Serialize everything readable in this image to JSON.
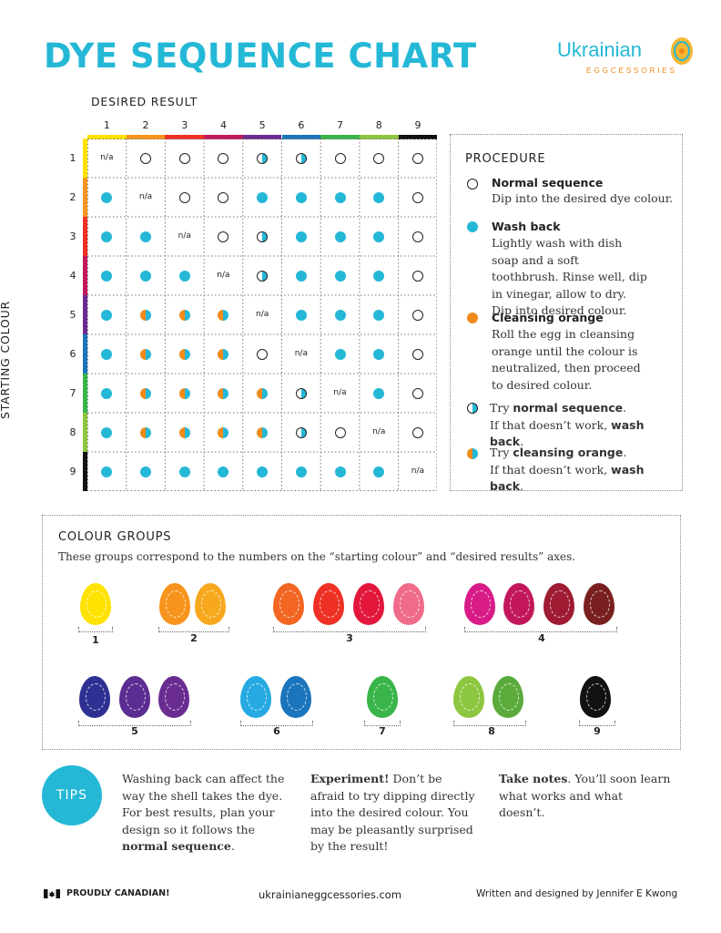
{
  "title": "DYE SEQUENCE CHART",
  "logo": {
    "word": "Ukrainian",
    "sub": "EGGCESSORIES"
  },
  "axes": {
    "top": "DESIRED RESULT",
    "left": "STARTING COLOUR"
  },
  "colors": {
    "accent": "#24b8d6",
    "orange": "#f08a1a",
    "group_bars": [
      "#ffe200",
      "#f7941d",
      "#ee3124",
      "#c2185b",
      "#6a2c91",
      "#1b75bc",
      "#39b54a",
      "#8dc63f",
      "#111111"
    ]
  },
  "column_numbers": [
    "1",
    "2",
    "3",
    "4",
    "5",
    "6",
    "7",
    "8",
    "9"
  ],
  "row_numbers": [
    "1",
    "2",
    "3",
    "4",
    "5",
    "6",
    "7",
    "8",
    "9"
  ],
  "legend_codes": {
    "n": "normal sequence",
    "w": "wash back",
    "h": "try normal, else wash back",
    "o": "try cleansing orange, else wash back",
    "x": "n/a"
  },
  "matrix": [
    [
      "x",
      "n",
      "n",
      "n",
      "h",
      "h",
      "n",
      "n",
      "n"
    ],
    [
      "w",
      "x",
      "n",
      "n",
      "w",
      "w",
      "w",
      "w",
      "n"
    ],
    [
      "w",
      "w",
      "x",
      "n",
      "h",
      "w",
      "w",
      "w",
      "n"
    ],
    [
      "w",
      "w",
      "w",
      "x",
      "h",
      "w",
      "w",
      "w",
      "n"
    ],
    [
      "w",
      "o",
      "o",
      "o",
      "x",
      "w",
      "w",
      "w",
      "n"
    ],
    [
      "w",
      "o",
      "o",
      "o",
      "n",
      "x",
      "w",
      "w",
      "n"
    ],
    [
      "w",
      "o",
      "o",
      "o",
      "o",
      "h",
      "x",
      "w",
      "n"
    ],
    [
      "w",
      "o",
      "o",
      "o",
      "o",
      "h",
      "n",
      "x",
      "n"
    ],
    [
      "w",
      "w",
      "w",
      "w",
      "w",
      "w",
      "w",
      "w",
      "x"
    ]
  ],
  "na_label": "n/a",
  "procedure": {
    "title": "PROCEDURE",
    "normal_heading": "Normal sequence",
    "normal_text": "Dip into the desired dye colour.",
    "wash_heading": "Wash back",
    "wash_text": "Lightly wash with dish soap and a soft toothbrush. Rinse well, dip in vinegar, allow to dry. Dip into desired colour.",
    "orange_heading": "Cleansing orange",
    "orange_text": "Roll the egg in cleansing orange until the colour is neutralized, then proceed to desired colour.",
    "try1_a": "Try ",
    "try1_b": "normal sequence",
    "try1_c": ".",
    "try1_d": "If that doesn’t work, ",
    "try1_e": "wash back",
    "try1_f": ".",
    "try2_a": "Try ",
    "try2_b": "cleansing orange",
    "try2_c": ".",
    "try2_d": "If that doesn’t work, ",
    "try2_e": "wash back",
    "try2_f": "."
  },
  "groups": {
    "title": "COLOUR GROUPS",
    "subtitle": "These groups correspond to the numbers on the “starting colour” and “desired results” axes.",
    "labels": [
      "1",
      "2",
      "3",
      "4",
      "5",
      "6",
      "7",
      "8",
      "9"
    ]
  },
  "tips": {
    "badge": "TIPS",
    "col1_a": "Washing back can affect the way the shell takes the dye. For best results, plan your design so it follows the ",
    "col1_b": "normal sequence",
    "col1_c": ".",
    "col2_a": "Experiment!",
    "col2_b": " Don’t be afraid to try dipping directly into the desired colour. You may be pleasantly surprised by the result!",
    "col3_a": "Take notes",
    "col3_b": ". You’ll soon learn what works and what doesn’t."
  },
  "footer": {
    "left": "PROUDLY CANADIAN!",
    "center": "ukrainianeggcessories.com",
    "right": "Written and designed by Jennifer E Kwong"
  }
}
